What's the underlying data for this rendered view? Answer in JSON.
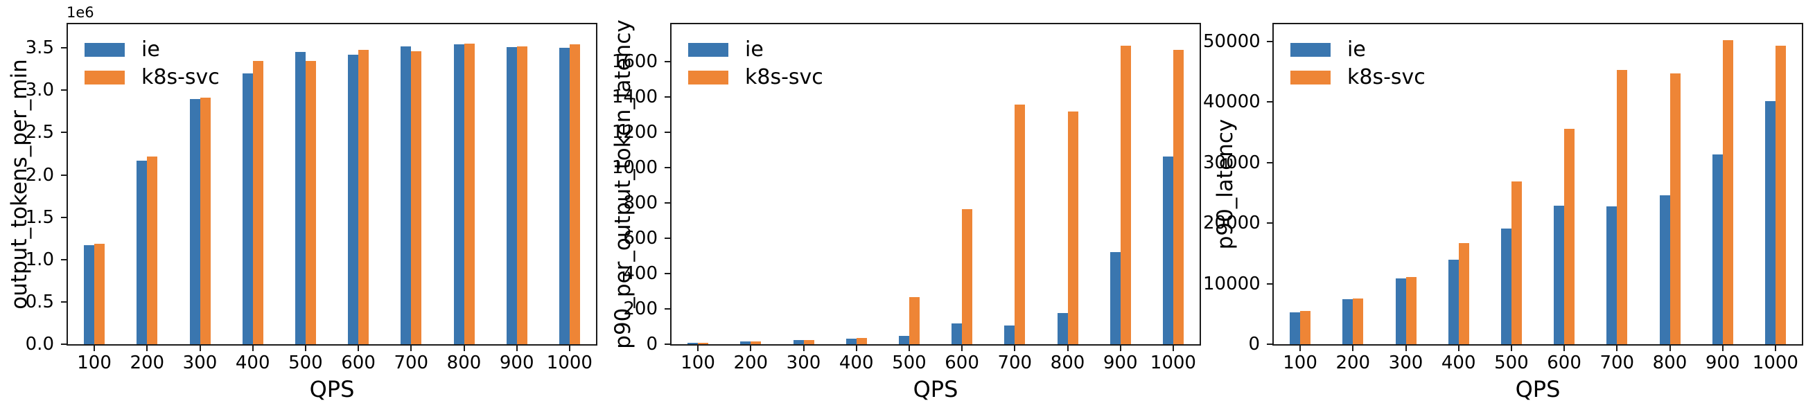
{
  "figure": {
    "background": "#ffffff",
    "axis_color": "#1a1a1a",
    "text_color": "#000000"
  },
  "colors": {
    "ie": "#3A76AF",
    "k8s_svc": "#EE8536"
  },
  "legend": {
    "entries": [
      {
        "name": "ie",
        "label": "ie",
        "color": "#3A76AF"
      },
      {
        "name": "k8s-svc",
        "label": "k8s-svc",
        "color": "#EE8536"
      }
    ],
    "position": "upper left",
    "frame": false
  },
  "chart_data": [
    {
      "type": "bar",
      "title": "",
      "xlabel": "QPS",
      "ylabel": "output_tokens_per_min",
      "offset_text": "1e6",
      "categories": [
        100,
        200,
        300,
        400,
        500,
        600,
        700,
        800,
        900,
        1000
      ],
      "series": [
        {
          "name": "ie",
          "color": "#3A76AF",
          "values": [
            1170000,
            2170000,
            2900000,
            3200000,
            3450000,
            3420000,
            3520000,
            3540000,
            3510000,
            3500000
          ]
        },
        {
          "name": "k8s-svc",
          "color": "#EE8536",
          "values": [
            1190000,
            2220000,
            2910000,
            3350000,
            3350000,
            3480000,
            3460000,
            3550000,
            3520000,
            3540000
          ]
        }
      ],
      "ylim": [
        0,
        3780000
      ],
      "yticks": [
        0,
        500000,
        1000000,
        1500000,
        2000000,
        2500000,
        3000000,
        3500000
      ],
      "ytick_labels": [
        "0.0",
        "0.5",
        "1.0",
        "1.5",
        "2.0",
        "2.5",
        "3.0",
        "3.5"
      ],
      "grid": false,
      "legend_position": "upper left"
    },
    {
      "type": "bar",
      "title": "",
      "xlabel": "QPS",
      "ylabel": "p90_per_output_token_latency",
      "offset_text": "",
      "categories": [
        100,
        200,
        300,
        400,
        500,
        600,
        700,
        800,
        900,
        1000
      ],
      "series": [
        {
          "name": "ie",
          "color": "#3A76AF",
          "values": [
            9,
            15,
            22,
            32,
            47,
            116,
            106,
            176,
            520,
            1060
          ]
        },
        {
          "name": "k8s-svc",
          "color": "#EE8536",
          "values": [
            9,
            16,
            23,
            37,
            268,
            763,
            1355,
            1315,
            1690,
            1665
          ]
        }
      ],
      "ylim": [
        0,
        1810
      ],
      "yticks": [
        0,
        200,
        400,
        600,
        800,
        1000,
        1200,
        1400,
        1600
      ],
      "ytick_labels": [
        "0",
        "200",
        "400",
        "600",
        "800",
        "1000",
        "1200",
        "1400",
        "1600"
      ],
      "grid": false,
      "legend_position": "upper left"
    },
    {
      "type": "bar",
      "title": "",
      "xlabel": "QPS",
      "ylabel": "p90_latency",
      "offset_text": "",
      "categories": [
        100,
        200,
        300,
        400,
        500,
        600,
        700,
        800,
        900,
        1000
      ],
      "series": [
        {
          "name": "ie",
          "color": "#3A76AF",
          "values": [
            5300,
            7400,
            10900,
            13900,
            19100,
            22800,
            22700,
            24600,
            31300,
            40100
          ]
        },
        {
          "name": "k8s-svc",
          "color": "#EE8536",
          "values": [
            5450,
            7550,
            11050,
            16700,
            26900,
            35500,
            45200,
            44700,
            50200,
            49300
          ]
        }
      ],
      "ylim": [
        0,
        52800
      ],
      "yticks": [
        0,
        10000,
        20000,
        30000,
        40000,
        50000
      ],
      "ytick_labels": [
        "0",
        "10000",
        "20000",
        "30000",
        "40000",
        "50000"
      ],
      "grid": false,
      "legend_position": "upper left"
    }
  ]
}
